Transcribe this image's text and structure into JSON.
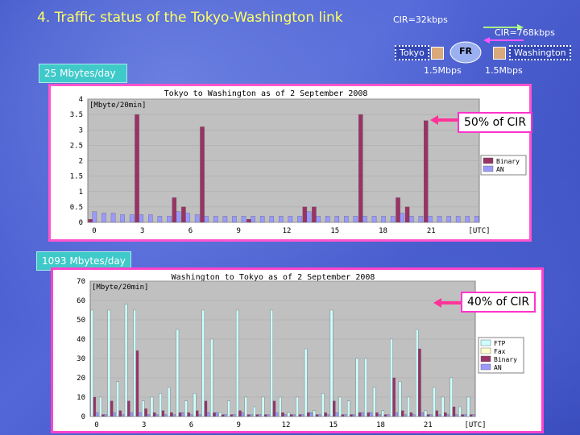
{
  "title": "4.  Traffic status of the Tokyo-Washington link",
  "network": {
    "cir_low": "CIR=32kbps",
    "cir_high": "CIR=768kbps",
    "tokyo": "Tokyo",
    "fr": "FR",
    "washington": "Washington",
    "speed_left": "1.5Mbps",
    "speed_right": "1.5Mbps"
  },
  "callouts": {
    "top_volume": "25 Mbytes/day",
    "bottom_volume": "1093 Mbytes/day",
    "top_pct": "50% of CIR",
    "bottom_pct": "40% of CIR"
  },
  "colors": {
    "binary": "#993366",
    "an": "#9999ff",
    "ftp": "#ccffff",
    "fax": "#ffffcc",
    "plot_bg": "#c0c0c0"
  },
  "chart_data": [
    {
      "type": "bar",
      "title": "Tokyo to Washington as of 2 September 2008",
      "ylabel": "[Mbyte/20min]",
      "xlabel": "[UTC]",
      "ylim": [
        0,
        4
      ],
      "yticks": [
        "4",
        "3.5",
        "3",
        "2.5",
        "2",
        "1.5",
        "1",
        "0.5",
        "0"
      ],
      "xticks": [
        "0",
        "3",
        "6",
        "9",
        "12",
        "15",
        "18",
        "21",
        "[UTC]"
      ],
      "legend": [
        "Binary",
        "AN"
      ],
      "series": [
        {
          "name": "Binary",
          "color": "#993366",
          "values": [
            0.1,
            0,
            0,
            0,
            0,
            3.5,
            0,
            0,
            0,
            0.8,
            0.5,
            0,
            3.1,
            0,
            0,
            0,
            0,
            0.1,
            0,
            0,
            0,
            0,
            0,
            0.5,
            0.5,
            0,
            0,
            0,
            0,
            3.5,
            0,
            0,
            0,
            0.8,
            0.5,
            0,
            3.3,
            0,
            0,
            0,
            0,
            0
          ]
        },
        {
          "name": "AN",
          "color": "#9999ff",
          "values": [
            0.35,
            0.3,
            0.3,
            0.25,
            0.25,
            0.25,
            0.25,
            0.2,
            0.2,
            0.35,
            0.3,
            0.25,
            0.2,
            0.2,
            0.2,
            0.2,
            0.2,
            0.2,
            0.2,
            0.2,
            0.2,
            0.2,
            0.2,
            0.35,
            0.2,
            0.2,
            0.2,
            0.2,
            0.2,
            0.2,
            0.2,
            0.2,
            0.2,
            0.3,
            0.2,
            0.2,
            0.2,
            0.2,
            0.2,
            0.2,
            0.2,
            0.2
          ]
        }
      ]
    },
    {
      "type": "bar",
      "title": "Washington to Tokyo as of 2 September 2008",
      "ylabel": "[Mbyte/20min]",
      "xlabel": "[UTC]",
      "ylim": [
        0,
        70
      ],
      "yticks": [
        "70",
        "60",
        "50",
        "40",
        "30",
        "20",
        "10",
        "0"
      ],
      "xticks": [
        "0",
        "3",
        "6",
        "9",
        "12",
        "15",
        "18",
        "21",
        "[UTC]"
      ],
      "legend": [
        "FTP",
        "Fax",
        "Binary",
        "AN"
      ],
      "series": [
        {
          "name": "FTP",
          "color": "#ccffff",
          "values": [
            55,
            10,
            55,
            18,
            58,
            55,
            8,
            10,
            12,
            15,
            45,
            8,
            12,
            55,
            40,
            2,
            8,
            55,
            10,
            5,
            10,
            55,
            10,
            2,
            10,
            35,
            3,
            12,
            55,
            10,
            8,
            30,
            30,
            15,
            3,
            40,
            18,
            10,
            45,
            3,
            15,
            10,
            20,
            5,
            10
          ]
        },
        {
          "name": "Binary",
          "color": "#993366",
          "values": [
            10,
            1,
            8,
            3,
            8,
            34,
            4,
            2,
            3,
            2,
            2,
            2,
            3,
            8,
            2,
            1,
            1,
            3,
            1,
            1,
            1,
            8,
            2,
            1,
            1,
            2,
            1,
            2,
            8,
            1,
            1,
            2,
            2,
            2,
            1,
            20,
            3,
            2,
            35,
            1,
            3,
            2,
            5,
            1,
            1
          ]
        },
        {
          "name": "AN",
          "color": "#9999ff",
          "values": [
            2,
            1,
            2,
            1,
            2,
            2,
            1,
            1,
            1,
            1,
            2,
            1,
            1,
            2,
            2,
            1,
            1,
            2,
            1,
            1,
            1,
            2,
            1,
            1,
            1,
            2,
            1,
            1,
            2,
            1,
            1,
            2,
            2,
            1,
            1,
            2,
            1,
            1,
            2,
            1,
            1,
            1,
            1,
            1,
            1
          ]
        }
      ]
    }
  ]
}
